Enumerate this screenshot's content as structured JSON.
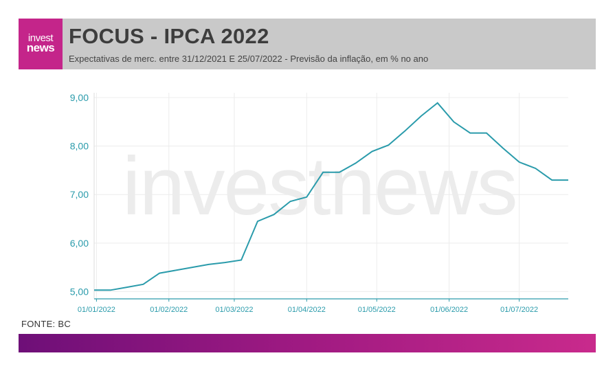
{
  "header": {
    "logo_line1": "invest",
    "logo_line2": "news",
    "title": "FOCUS - IPCA 2022",
    "subtitle": "Expectativas de merc. entre 31/12/2021 E 25/07/2022 - Previsão da inflação, em % no ano"
  },
  "footer": {
    "source": "FONTE: BC"
  },
  "watermark": "investnews",
  "colors": {
    "line": "#2a9bab",
    "axis_text": "#2a9bab",
    "brand": "#c4258a"
  },
  "chart_data": {
    "type": "line",
    "title": "FOCUS - IPCA 2022",
    "xlabel": "",
    "ylabel": "",
    "ylim": [
      4.85,
      9.1
    ],
    "yticks": [
      5.0,
      6.0,
      7.0,
      8.0,
      9.0
    ],
    "ytick_labels": [
      "5,00",
      "6,00",
      "7,00",
      "8,00",
      "9,00"
    ],
    "xlim": [
      "2021-12-31",
      "2022-07-22"
    ],
    "xticks": [
      "2022-01-01",
      "2022-02-01",
      "2022-03-01",
      "2022-04-01",
      "2022-05-01",
      "2022-06-01",
      "2022-07-01"
    ],
    "xtick_labels": [
      "01/01/2022",
      "01/02/2022",
      "01/03/2022",
      "01/04/2022",
      "01/05/2022",
      "01/06/2022",
      "01/07/2022"
    ],
    "grid": true,
    "series": [
      {
        "x": [
          "2021-12-31",
          "2022-01-07",
          "2022-01-14",
          "2022-01-21",
          "2022-01-28",
          "2022-02-04",
          "2022-02-11",
          "2022-02-18",
          "2022-02-25",
          "2022-03-04",
          "2022-03-11",
          "2022-03-18",
          "2022-03-25",
          "2022-04-01",
          "2022-04-08",
          "2022-04-15",
          "2022-04-22",
          "2022-04-29",
          "2022-05-06",
          "2022-05-13",
          "2022-05-20",
          "2022-05-27",
          "2022-06-03",
          "2022-06-10",
          "2022-06-17",
          "2022-06-24",
          "2022-07-01",
          "2022-07-08",
          "2022-07-15",
          "2022-07-22"
        ],
        "y": [
          5.03,
          5.03,
          5.09,
          5.15,
          5.38,
          5.44,
          5.5,
          5.56,
          5.6,
          5.65,
          6.45,
          6.59,
          6.86,
          6.95,
          7.46,
          7.46,
          7.65,
          7.89,
          8.02,
          8.31,
          8.62,
          8.89,
          8.5,
          8.27,
          8.27,
          7.96,
          7.67,
          7.54,
          7.3,
          7.3
        ]
      }
    ]
  }
}
